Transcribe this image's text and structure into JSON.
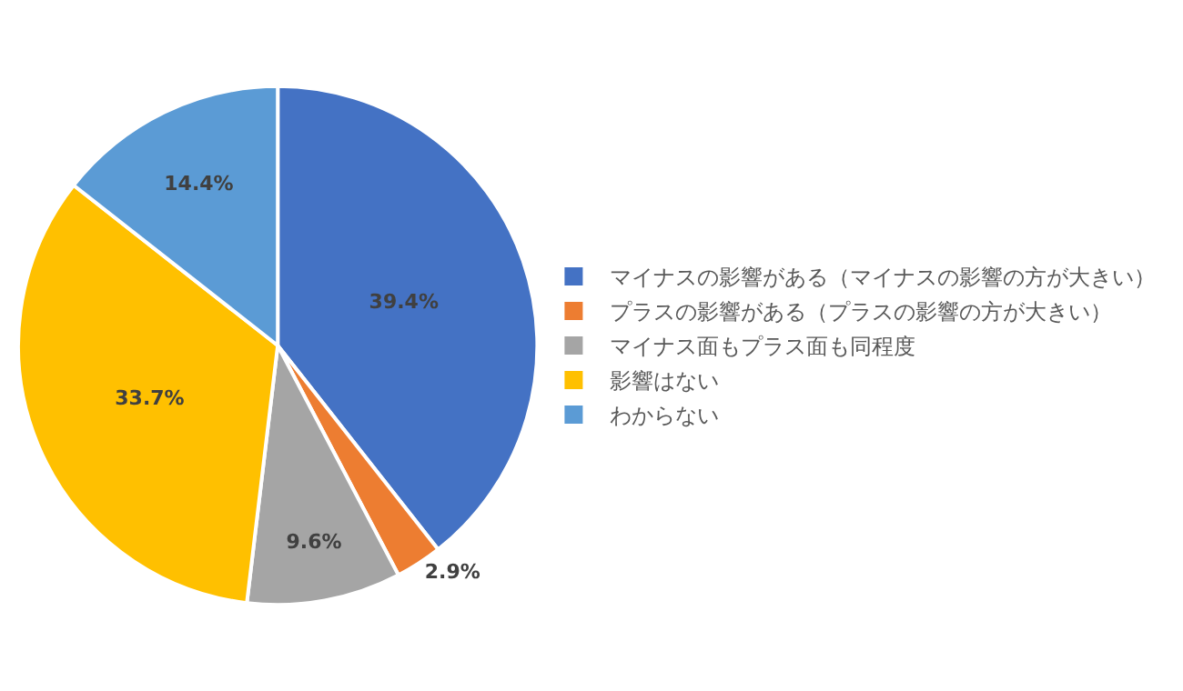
{
  "chart_data": {
    "type": "pie",
    "categories": [
      "マイナスの影響がある（マイナスの影響の方が大きい）",
      "プラスの影響がある（プラスの影響の方が大きい）",
      "マイナス面もプラス面も同程度",
      "影響はない",
      "わからない"
    ],
    "values": [
      39.4,
      2.9,
      9.6,
      33.7,
      14.4
    ],
    "colors": [
      "#4472c4",
      "#ed7d31",
      "#a5a5a5",
      "#ffc000",
      "#5b9bd5"
    ],
    "value_labels": [
      "39.4%",
      "2.9%",
      "9.6%",
      "33.7%",
      "14.4%"
    ],
    "legend": "right"
  }
}
